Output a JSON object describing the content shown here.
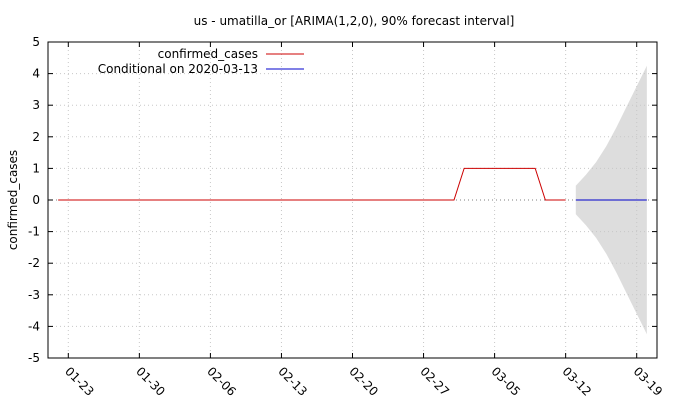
{
  "chart_data": {
    "type": "line",
    "title": "us - umatilla_or [ARIMA(1,2,0), 90% forecast interval]",
    "ylabel": "confirmed_cases",
    "xlabel": "",
    "ylim": [
      -5,
      5
    ],
    "yticks": [
      "5",
      "4",
      "3",
      "2",
      "1",
      "0",
      "-1",
      "-2",
      "-3",
      "-4",
      "-5"
    ],
    "xlim": [
      "2020-01-21",
      "2020-03-21"
    ],
    "xticks": [
      {
        "date": "2020-01-23",
        "label": "01-23"
      },
      {
        "date": "2020-01-30",
        "label": "01-30"
      },
      {
        "date": "2020-02-06",
        "label": "02-06"
      },
      {
        "date": "2020-02-13",
        "label": "02-13"
      },
      {
        "date": "2020-02-20",
        "label": "02-20"
      },
      {
        "date": "2020-02-27",
        "label": "02-27"
      },
      {
        "date": "2020-03-05",
        "label": "03-05"
      },
      {
        "date": "2020-03-12",
        "label": "03-12"
      },
      {
        "date": "2020-03-19",
        "label": "03-19"
      }
    ],
    "grid": true,
    "legend_position": "top-left",
    "series": [
      {
        "name": "confirmed_cases",
        "color": "#cc0000",
        "points": [
          [
            "2020-01-22",
            0
          ],
          [
            "2020-03-01",
            0
          ],
          [
            "2020-03-02",
            1
          ],
          [
            "2020-03-09",
            1
          ],
          [
            "2020-03-10",
            0
          ],
          [
            "2020-03-12",
            0
          ]
        ]
      },
      {
        "name": "Conditional on 2020-03-13",
        "color": "#0000cc",
        "points": [
          [
            "2020-03-13",
            0
          ],
          [
            "2020-03-20",
            0
          ]
        ]
      }
    ],
    "forecast_interval": {
      "level": "90%",
      "color": "#dddddd",
      "points": [
        [
          "2020-03-13",
          0.45,
          -0.45
        ],
        [
          "2020-03-14",
          0.8,
          -0.8
        ],
        [
          "2020-03-15",
          1.2,
          -1.2
        ],
        [
          "2020-03-16",
          1.7,
          -1.7
        ],
        [
          "2020-03-17",
          2.3,
          -2.3
        ],
        [
          "2020-03-18",
          2.95,
          -2.95
        ],
        [
          "2020-03-19",
          3.6,
          -3.6
        ],
        [
          "2020-03-20",
          4.25,
          -4.25
        ]
      ]
    }
  }
}
